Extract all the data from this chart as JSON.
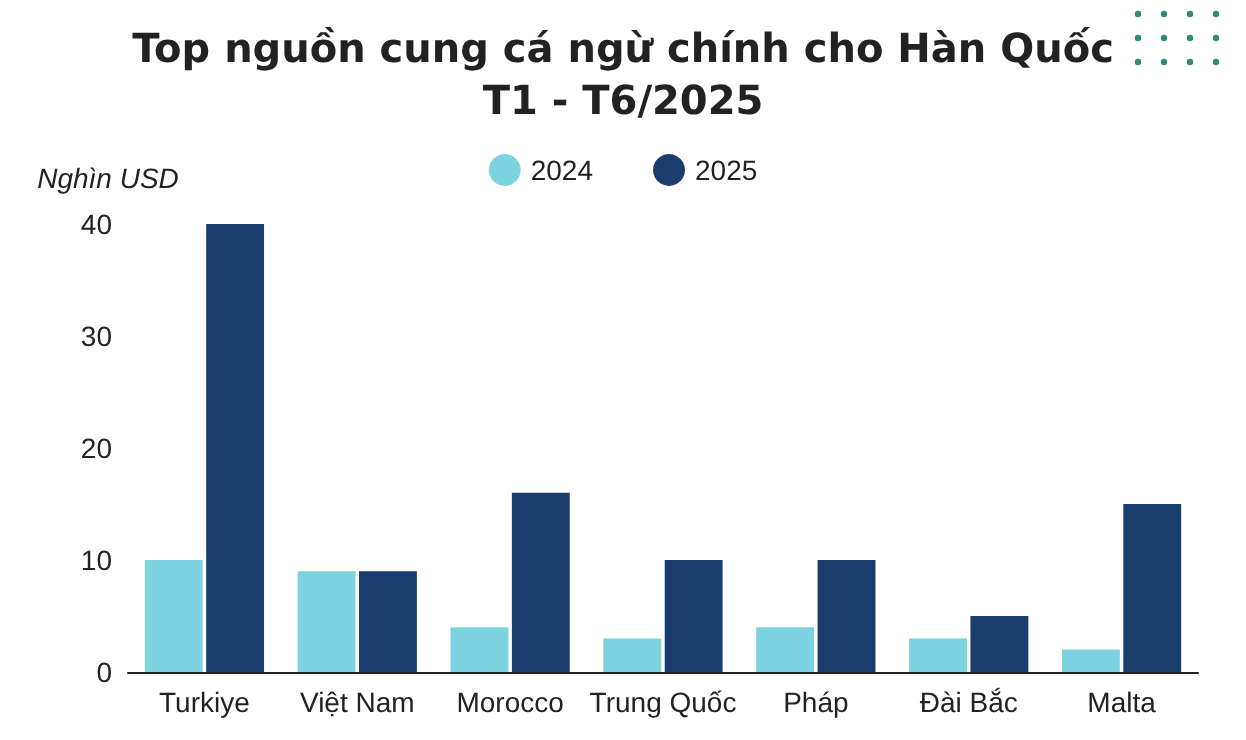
{
  "chart_data": {
    "type": "bar",
    "title": "Top nguồn cung cá ngừ chính cho Hàn Quốc\nT1 - T6/2025",
    "ylabel": "Nghìn USD",
    "categories": [
      "Turkiye",
      "Việt Nam",
      "Morocco",
      "Trung Quốc",
      "Pháp",
      "Đài Bắc",
      "Malta"
    ],
    "series": [
      {
        "name": "2024",
        "color": "#7dd3df",
        "values": [
          10,
          9,
          4,
          3,
          4,
          3,
          2
        ]
      },
      {
        "name": "2025",
        "color": "#1b3d6e",
        "values": [
          40,
          9,
          16,
          10,
          10,
          5,
          15
        ]
      }
    ],
    "ylim": [
      0,
      40
    ],
    "yticks": [
      0,
      10,
      20,
      30,
      40
    ],
    "grid": false,
    "legend": "top"
  }
}
